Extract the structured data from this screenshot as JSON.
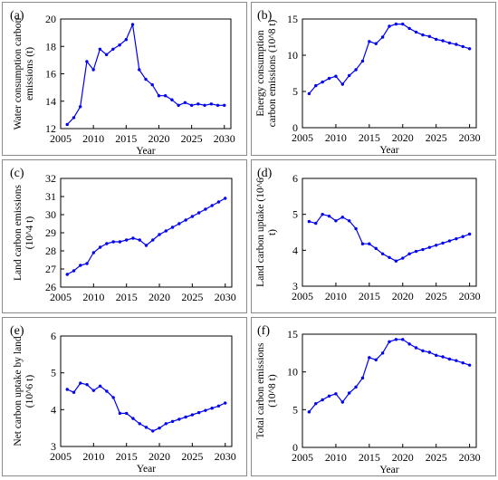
{
  "chart_data": [
    {
      "type": "line",
      "panel_label": "(a)",
      "xlabel": "Year",
      "ylabel": "Water consumption carbon emissions (t)",
      "xlim": [
        2005,
        2031
      ],
      "ylim": [
        12,
        20
      ],
      "xticks": [
        2005,
        2010,
        2015,
        2020,
        2025,
        2030
      ],
      "yticks": [
        12,
        14,
        16,
        18,
        20
      ],
      "color": "#0000ee",
      "series": [
        {
          "x": [
            2006,
            2007,
            2008,
            2009,
            2010,
            2011,
            2012,
            2013,
            2014,
            2015,
            2016,
            2017,
            2018,
            2019,
            2020,
            2021,
            2022,
            2023,
            2024,
            2025,
            2026,
            2027,
            2028,
            2029,
            2030
          ],
          "y": [
            12.3,
            12.8,
            13.6,
            16.9,
            16.3,
            17.8,
            17.4,
            17.8,
            18.1,
            18.5,
            19.6,
            16.3,
            15.6,
            15.2,
            14.4,
            14.4,
            14.1,
            13.7,
            13.9,
            13.7,
            13.8,
            13.7,
            13.8,
            13.7,
            13.7
          ]
        }
      ]
    },
    {
      "type": "line",
      "panel_label": "(b)",
      "xlabel": "Year",
      "ylabel": "Energy consumption carbon emissions (10^8 t)",
      "xlim": [
        2005,
        2031
      ],
      "ylim": [
        0,
        15
      ],
      "xticks": [
        2005,
        2010,
        2015,
        2020,
        2025,
        2030
      ],
      "yticks": [
        0,
        5,
        10,
        15
      ],
      "color": "#0000ee",
      "series": [
        {
          "x": [
            2006,
            2007,
            2008,
            2009,
            2010,
            2011,
            2012,
            2013,
            2014,
            2015,
            2016,
            2017,
            2018,
            2019,
            2020,
            2021,
            2022,
            2023,
            2024,
            2025,
            2026,
            2027,
            2028,
            2029,
            2030
          ],
          "y": [
            4.7,
            5.8,
            6.3,
            6.8,
            7.1,
            6.0,
            7.2,
            8.0,
            9.2,
            11.9,
            11.6,
            12.5,
            14.0,
            14.3,
            14.3,
            13.7,
            13.2,
            12.8,
            12.6,
            12.2,
            12.0,
            11.7,
            11.5,
            11.2,
            10.9
          ]
        }
      ]
    },
    {
      "type": "line",
      "panel_label": "(c)",
      "xlabel": "",
      "ylabel": "Land carbon emissions (10^4 t)",
      "xlim": [
        2005,
        2031
      ],
      "ylim": [
        26,
        32
      ],
      "xticks": [
        2005,
        2010,
        2015,
        2020,
        2025,
        2030
      ],
      "yticks": [
        26,
        27,
        28,
        29,
        30,
        31,
        32
      ],
      "color": "#0000ee",
      "series": [
        {
          "x": [
            2006,
            2007,
            2008,
            2009,
            2010,
            2011,
            2012,
            2013,
            2014,
            2015,
            2016,
            2017,
            2018,
            2019,
            2020,
            2021,
            2022,
            2023,
            2024,
            2025,
            2026,
            2027,
            2028,
            2029,
            2030
          ],
          "y": [
            26.7,
            26.9,
            27.2,
            27.3,
            27.9,
            28.2,
            28.4,
            28.5,
            28.5,
            28.6,
            28.7,
            28.6,
            28.3,
            28.6,
            28.9,
            29.1,
            29.3,
            29.5,
            29.7,
            29.9,
            30.1,
            30.3,
            30.5,
            30.7,
            30.9
          ]
        }
      ]
    },
    {
      "type": "line",
      "panel_label": "(d)",
      "xlabel": "",
      "ylabel": "Land carbon uptake (10^6 t)",
      "xlim": [
        2005,
        2031
      ],
      "ylim": [
        3,
        6
      ],
      "xticks": [
        2005,
        2010,
        2015,
        2020,
        2025,
        2030
      ],
      "yticks": [
        3,
        4,
        5,
        6
      ],
      "color": "#0000ee",
      "series": [
        {
          "x": [
            2006,
            2007,
            2008,
            2009,
            2010,
            2011,
            2012,
            2013,
            2014,
            2015,
            2016,
            2017,
            2018,
            2019,
            2020,
            2021,
            2022,
            2023,
            2024,
            2025,
            2026,
            2027,
            2028,
            2029,
            2030
          ],
          "y": [
            4.8,
            4.75,
            5.0,
            4.95,
            4.82,
            4.92,
            4.82,
            4.6,
            4.18,
            4.18,
            4.05,
            3.9,
            3.8,
            3.7,
            3.78,
            3.9,
            3.97,
            4.02,
            4.08,
            4.14,
            4.2,
            4.26,
            4.32,
            4.38,
            4.45
          ]
        }
      ]
    },
    {
      "type": "line",
      "panel_label": "(e)",
      "xlabel": "Year",
      "ylabel": "Net carbon uptake by land (10^6 t)",
      "xlim": [
        2005,
        2031
      ],
      "ylim": [
        3,
        6
      ],
      "xticks": [
        2005,
        2010,
        2015,
        2020,
        2025,
        2030
      ],
      "yticks": [
        3,
        4,
        5,
        6
      ],
      "color": "#0000ee",
      "series": [
        {
          "x": [
            2006,
            2007,
            2008,
            2009,
            2010,
            2011,
            2012,
            2013,
            2014,
            2015,
            2016,
            2017,
            2018,
            2019,
            2020,
            2021,
            2022,
            2023,
            2024,
            2025,
            2026,
            2027,
            2028,
            2029,
            2030
          ],
          "y": [
            4.55,
            4.47,
            4.72,
            4.68,
            4.52,
            4.64,
            4.5,
            4.33,
            3.9,
            3.9,
            3.76,
            3.62,
            3.52,
            3.42,
            3.5,
            3.62,
            3.68,
            3.74,
            3.8,
            3.86,
            3.92,
            3.98,
            4.04,
            4.1,
            4.18
          ]
        }
      ]
    },
    {
      "type": "line",
      "panel_label": "(f)",
      "xlabel": "Year",
      "ylabel": "Total carbon emissions (10^8 t)",
      "xlim": [
        2005,
        2031
      ],
      "ylim": [
        0,
        15
      ],
      "xticks": [
        2005,
        2010,
        2015,
        2020,
        2025,
        2030
      ],
      "yticks": [
        0,
        5,
        10,
        15
      ],
      "color": "#0000ee",
      "series": [
        {
          "x": [
            2006,
            2007,
            2008,
            2009,
            2010,
            2011,
            2012,
            2013,
            2014,
            2015,
            2016,
            2017,
            2018,
            2019,
            2020,
            2021,
            2022,
            2023,
            2024,
            2025,
            2026,
            2027,
            2028,
            2029,
            2030
          ],
          "y": [
            4.7,
            5.8,
            6.3,
            6.8,
            7.1,
            6.0,
            7.2,
            8.0,
            9.2,
            11.9,
            11.6,
            12.5,
            14.0,
            14.3,
            14.3,
            13.7,
            13.2,
            12.8,
            12.6,
            12.2,
            12.0,
            11.7,
            11.5,
            11.2,
            10.9
          ]
        }
      ]
    }
  ]
}
